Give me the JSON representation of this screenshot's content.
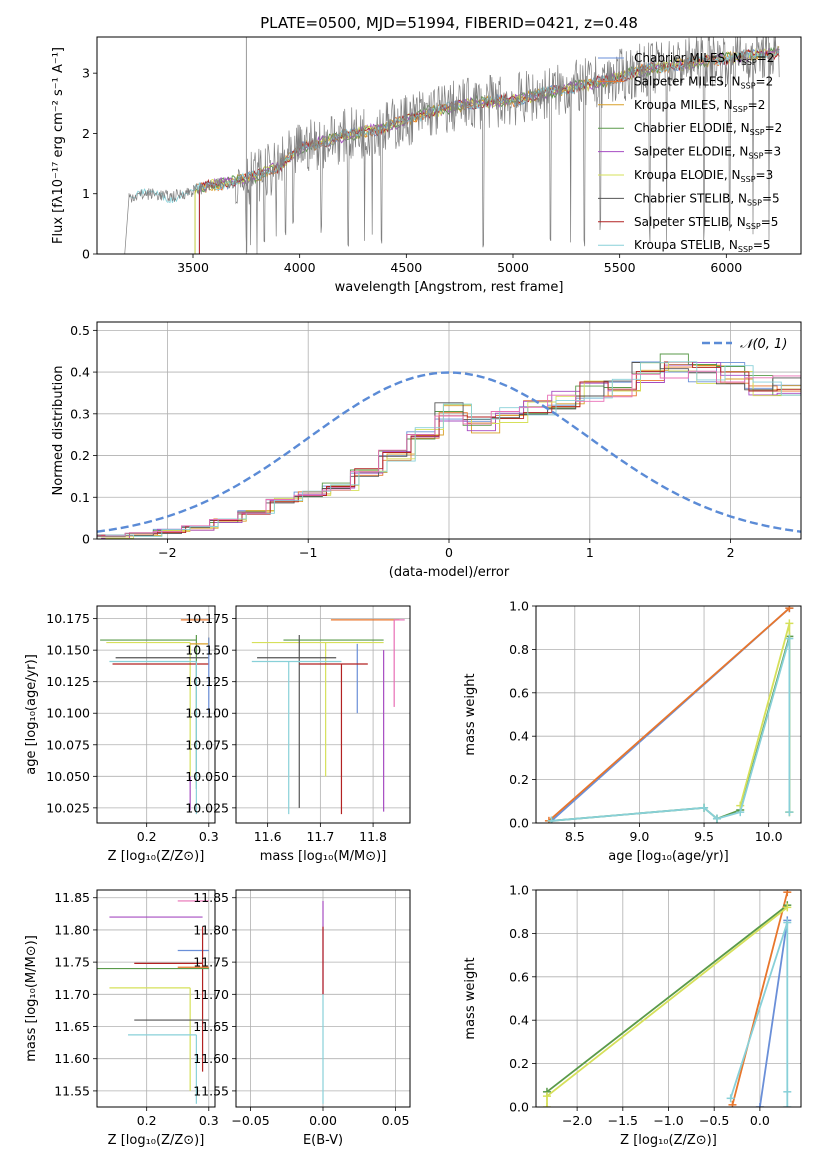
{
  "title": "PLATE=0500, MJD=51994, FIBERID=0421, z=0.48",
  "palette": {
    "chabrier_miles": "#6a8fd8",
    "salpeter_miles": "#e8762c",
    "kroupa_miles": "#d9a02a",
    "chabrier_elodie": "#5a9a4a",
    "salpeter_elodie": "#a64cc2",
    "kroupa_elodie": "#d6e05a",
    "chabrier_stelib": "#555555",
    "salpeter_stelib": "#b22222",
    "kroupa_stelib": "#88d0d8",
    "data": "#808080",
    "pink": "#e86fb5",
    "normal": "#5b8bd6"
  },
  "chart_data": [
    {
      "id": "spectrum",
      "type": "line",
      "xlabel": "wavelength [Angstrom, rest frame]",
      "ylabel": "Flux [fλ10⁻¹⁷ erg cm⁻² s⁻¹ A⁻¹]",
      "xlim": [
        3050,
        6350
      ],
      "ylim": [
        0,
        3.6
      ],
      "xticks": [
        3500,
        4000,
        4500,
        5000,
        5500,
        6000
      ],
      "yticks": [
        0,
        1,
        2,
        3
      ],
      "series_labels": [
        {
          "name": "Chabrier MILES, N",
          "sub": "SSP",
          "tail": "=2",
          "color": "chabrier_miles"
        },
        {
          "name": "Salpeter MILES, N",
          "sub": "SSP",
          "tail": "=2",
          "color": "salpeter_miles"
        },
        {
          "name": "Kroupa MILES, N",
          "sub": "SSP",
          "tail": "=2",
          "color": "kroupa_miles"
        },
        {
          "name": "Chabrier ELODIE, N",
          "sub": "SSP",
          "tail": "=2",
          "color": "chabrier_elodie"
        },
        {
          "name": "Salpeter ELODIE, N",
          "sub": "SSP",
          "tail": "=3",
          "color": "salpeter_elodie"
        },
        {
          "name": "Kroupa ELODIE, N",
          "sub": "SSP",
          "tail": "=3",
          "color": "kroupa_elodie"
        },
        {
          "name": "Chabrier STELIB, N",
          "sub": "SSP",
          "tail": "=5",
          "color": "chabrier_stelib"
        },
        {
          "name": "Salpeter STELIB, N",
          "sub": "SSP",
          "tail": "=5",
          "color": "salpeter_stelib"
        },
        {
          "name": "Kroupa STELIB, N",
          "sub": "SSP",
          "tail": "=5",
          "color": "kroupa_stelib"
        }
      ],
      "continuum": [
        [
          3200,
          0.95
        ],
        [
          3300,
          1.0
        ],
        [
          3400,
          0.95
        ],
        [
          3500,
          1.05
        ],
        [
          3600,
          1.15
        ],
        [
          3700,
          1.2
        ],
        [
          3800,
          1.3
        ],
        [
          3900,
          1.45
        ],
        [
          4000,
          1.75
        ],
        [
          4200,
          1.95
        ],
        [
          4400,
          2.1
        ],
        [
          4600,
          2.35
        ],
        [
          4800,
          2.5
        ],
        [
          5000,
          2.55
        ],
        [
          5200,
          2.7
        ],
        [
          5400,
          2.85
        ],
        [
          5600,
          3.05
        ],
        [
          5800,
          3.15
        ],
        [
          6000,
          3.25
        ],
        [
          6250,
          3.35
        ]
      ],
      "absorption_lines": [
        3750,
        3770,
        3800,
        3835,
        3890,
        3934,
        3969,
        4102,
        4227,
        4304,
        4340,
        4384,
        4861,
        5175,
        5270,
        5335,
        5410,
        5640,
        5720,
        5895,
        6015,
        6125,
        6200
      ]
    },
    {
      "id": "residuals",
      "type": "bar",
      "xlabel": "(data-model)/error",
      "ylabel": "Normed distribution",
      "xlim": [
        -2.5,
        2.5
      ],
      "ylim": [
        0,
        0.52
      ],
      "xticks": [
        -2,
        -1,
        0,
        1,
        2
      ],
      "yticks": [
        0.0,
        0.1,
        0.2,
        0.3,
        0.4,
        0.5
      ],
      "legend": {
        "label": "𝒩(0, 1)",
        "placement": "top-right"
      },
      "bin_width": 0.1,
      "bin_start": -2.5,
      "hist_base": [
        0.005,
        0.007,
        0.01,
        0.012,
        0.016,
        0.02,
        0.024,
        0.03,
        0.04,
        0.05,
        0.06,
        0.07,
        0.085,
        0.1,
        0.11,
        0.105,
        0.12,
        0.13,
        0.15,
        0.17,
        0.19,
        0.21,
        0.23,
        0.27,
        0.3,
        0.31,
        0.28,
        0.27,
        0.3,
        0.3,
        0.32,
        0.32,
        0.34,
        0.33,
        0.35,
        0.36,
        0.35,
        0.37,
        0.38,
        0.42,
        0.43,
        0.4,
        0.41,
        0.38,
        0.42,
        0.38,
        0.36,
        0.37,
        0.35,
        0.38,
        0.37,
        0.39,
        0.37,
        0.35,
        0.36,
        0.31,
        0.3,
        0.29,
        0.27,
        0.26,
        0.24,
        0.23,
        0.22,
        0.2,
        0.2,
        0.19,
        0.15,
        0.16,
        0.14,
        0.14,
        0.12,
        0.13,
        0.1,
        0.11,
        0.09,
        0.09,
        0.07,
        0.07,
        0.06,
        0.06,
        0.06,
        0.05,
        0.05,
        0.05,
        0.04,
        0.04,
        0.04,
        0.04,
        0.03,
        0.03,
        0.03,
        0.03,
        0.03,
        0.03,
        0.03,
        0.03,
        0.03,
        0.03,
        0.03,
        0.03
      ]
    },
    {
      "id": "age_vs_Z",
      "type": "scatter",
      "xlabel": "Z [log₁₀(Z/Z⊙)]",
      "ylabel": "age  [log₁₀(age/yr)]",
      "xlim": [
        0.12,
        0.31
      ],
      "ylim": [
        10.013,
        10.185
      ],
      "xticks": [
        0.2,
        0.3
      ],
      "yticks": [
        10.025,
        10.05,
        10.075,
        10.1,
        10.125,
        10.15,
        10.175
      ],
      "ytick_labels": [
        "10.025",
        "10.050",
        "10.075",
        "10.100",
        "10.125",
        "10.150",
        "10.175"
      ],
      "points": [
        {
          "color": "salpeter_miles",
          "x": 0.3,
          "y": 10.174,
          "xerr": [
            0.255,
            0.3
          ],
          "yerr": [
            10.174,
            10.174
          ]
        },
        {
          "color": "chabrier_elodie",
          "x": 0.28,
          "y": 10.158,
          "xerr": [
            0.125,
            0.28
          ],
          "yerr": [
            10.04,
            10.162
          ]
        },
        {
          "color": "kroupa_elodie",
          "x": 0.27,
          "y": 10.156,
          "xerr": [
            0.135,
            0.27
          ],
          "yerr": [
            10.05,
            10.156
          ]
        },
        {
          "color": "kroupa_miles",
          "x": 0.3,
          "y": 10.155,
          "xerr": [
            0.27,
            0.3
          ],
          "yerr": [
            10.15,
            10.16
          ]
        },
        {
          "color": "chabrier_stelib",
          "x": 0.3,
          "y": 10.144,
          "xerr": [
            0.15,
            0.3
          ],
          "yerr": [
            10.144,
            10.144
          ]
        },
        {
          "color": "salpeter_stelib",
          "x": 0.3,
          "y": 10.139,
          "xerr": [
            0.145,
            0.3
          ],
          "yerr": [
            10.139,
            10.139
          ]
        },
        {
          "color": "kroupa_stelib",
          "x": 0.28,
          "y": 10.141,
          "xerr": [
            0.14,
            0.28
          ],
          "yerr": [
            10.02,
            10.141
          ]
        },
        {
          "color": "salpeter_elodie",
          "x": 0.27,
          "y": 10.05,
          "xerr": [
            0.27,
            0.27
          ],
          "yerr": [
            10.023,
            10.05
          ]
        },
        {
          "color": "chabrier_miles",
          "x": 0.3,
          "y": 10.16,
          "xerr": [
            0.3,
            0.3
          ],
          "yerr": [
            10.1,
            10.16
          ]
        }
      ]
    },
    {
      "id": "age_vs_mass",
      "type": "scatter",
      "xlabel": "mass [log₁₀(M/M⊙)]",
      "ylabel": "",
      "xlim": [
        11.54,
        11.87
      ],
      "ylim": [
        10.013,
        10.185
      ],
      "xticks": [
        11.6,
        11.7,
        11.8
      ],
      "yticks": [
        10.025,
        10.05,
        10.075,
        10.1,
        10.125,
        10.15,
        10.175
      ],
      "ytick_labels": [
        "10.025",
        "10.050",
        "10.075",
        "10.100",
        "10.125",
        "10.150",
        "10.175"
      ],
      "points": [
        {
          "color": "salpeter_miles",
          "x": 11.74,
          "y": 10.174,
          "xerr": [
            11.72,
            11.85
          ],
          "yerr": [
            10.174,
            10.174
          ]
        },
        {
          "color": "pink",
          "x": 11.84,
          "y": 10.174,
          "xerr": [
            11.84,
            11.86
          ],
          "yerr": [
            10.105,
            10.174
          ]
        },
        {
          "color": "chabrier_elodie",
          "x": 11.74,
          "y": 10.158,
          "xerr": [
            11.63,
            11.82
          ],
          "yerr": [
            10.158,
            10.158
          ]
        },
        {
          "color": "kroupa_elodie",
          "x": 11.71,
          "y": 10.156,
          "xerr": [
            11.57,
            11.82
          ],
          "yerr": [
            10.05,
            10.156
          ]
        },
        {
          "color": "salpeter_elodie",
          "x": 11.82,
          "y": 10.15,
          "xerr": [
            11.82,
            11.82
          ],
          "yerr": [
            10.022,
            10.15
          ]
        },
        {
          "color": "chabrier_miles",
          "x": 11.77,
          "y": 10.155,
          "xerr": [
            11.77,
            11.77
          ],
          "yerr": [
            10.1,
            10.155
          ]
        },
        {
          "color": "chabrier_stelib",
          "x": 11.66,
          "y": 10.144,
          "xerr": [
            11.58,
            11.73
          ],
          "yerr": [
            10.025,
            10.162
          ]
        },
        {
          "color": "salpeter_stelib",
          "x": 11.74,
          "y": 10.139,
          "xerr": [
            11.66,
            11.79
          ],
          "yerr": [
            10.02,
            10.139
          ]
        },
        {
          "color": "kroupa_stelib",
          "x": 11.64,
          "y": 10.141,
          "xerr": [
            11.57,
            11.74
          ],
          "yerr": [
            10.02,
            10.141
          ]
        }
      ]
    },
    {
      "id": "weight_vs_age",
      "type": "line",
      "xlabel": "age  [log₁₀(age/yr)]",
      "ylabel": "mass weight",
      "xlim": [
        8.2,
        10.25
      ],
      "ylim": [
        0,
        1
      ],
      "xticks": [
        8.5,
        9.0,
        9.5,
        10.0
      ],
      "xtick_labels": [
        "8.5",
        "9.0",
        "9.5",
        "10.0"
      ],
      "yticks": [
        0,
        0.2,
        0.4,
        0.6,
        0.8,
        1.0
      ],
      "ytick_labels": [
        "0.0",
        "0.2",
        "0.4",
        "0.6",
        "0.8",
        "1.0"
      ],
      "series": [
        {
          "color": "chabrier_miles",
          "x": [
            8.32,
            10.16
          ],
          "y": [
            0.01,
            0.99
          ]
        },
        {
          "color": "salpeter_miles",
          "x": [
            8.3,
            10.16
          ],
          "y": [
            0.01,
            0.99
          ]
        },
        {
          "color": "chabrier_elodie",
          "x": [
            8.32,
            9.5,
            9.6,
            9.78,
            10.16,
            10.16
          ],
          "y": [
            0.01,
            0.07,
            0.02,
            0.06,
            0.86,
            0.05
          ]
        },
        {
          "color": "kroupa_elodie",
          "x": [
            9.78,
            10.16,
            10.16
          ],
          "y": [
            0.08,
            0.92,
            0.05
          ]
        },
        {
          "color": "kroupa_stelib",
          "x": [
            8.32,
            9.5,
            9.6,
            9.78,
            10.16,
            10.16
          ],
          "y": [
            0.01,
            0.07,
            0.02,
            0.05,
            0.85,
            0.05
          ]
        }
      ]
    },
    {
      "id": "mass_vs_Z",
      "type": "scatter",
      "xlabel": "Z [log₁₀(Z/Z⊙)]",
      "ylabel": "mass [log₁₀(M/M⊙)]",
      "xlim": [
        0.12,
        0.31
      ],
      "ylim": [
        11.525,
        11.862
      ],
      "xticks": [
        0.2,
        0.3
      ],
      "yticks": [
        11.55,
        11.6,
        11.65,
        11.7,
        11.75,
        11.8,
        11.85
      ],
      "ytick_labels": [
        "11.55",
        "11.60",
        "11.65",
        "11.70",
        "11.75",
        "11.80",
        "11.85"
      ],
      "points": [
        {
          "color": "pink",
          "x": 0.3,
          "y": 11.845,
          "xerr": [
            0.25,
            0.3
          ],
          "yerr": [
            11.845,
            11.845
          ]
        },
        {
          "color": "salpeter_elodie",
          "x": 0.29,
          "y": 11.82,
          "xerr": [
            0.14,
            0.29
          ],
          "yerr": [
            11.82,
            11.82
          ]
        },
        {
          "color": "chabrier_miles",
          "x": 0.3,
          "y": 11.768,
          "xerr": [
            0.25,
            0.3
          ],
          "yerr": [
            11.768,
            11.768
          ]
        },
        {
          "color": "salpeter_stelib",
          "x": 0.29,
          "y": 11.748,
          "xerr": [
            0.18,
            0.29
          ],
          "yerr": [
            11.58,
            11.805
          ]
        },
        {
          "color": "salpeter_miles",
          "x": 0.3,
          "y": 11.742,
          "xerr": [
            0.25,
            0.3
          ],
          "yerr": [
            11.742,
            11.742
          ]
        },
        {
          "color": "chabrier_elodie",
          "x": 0.3,
          "y": 11.74,
          "xerr": [
            0.12,
            0.3
          ],
          "yerr": [
            11.74,
            11.74
          ]
        },
        {
          "color": "kroupa_elodie",
          "x": 0.27,
          "y": 11.71,
          "xerr": [
            0.14,
            0.27
          ],
          "yerr": [
            11.55,
            11.71
          ]
        },
        {
          "color": "chabrier_stelib",
          "x": 0.3,
          "y": 11.66,
          "xerr": [
            0.18,
            0.3
          ],
          "yerr": [
            11.66,
            11.66
          ]
        },
        {
          "color": "kroupa_stelib",
          "x": 0.28,
          "y": 11.637,
          "xerr": [
            0.17,
            0.28
          ],
          "yerr": [
            11.53,
            11.637
          ]
        }
      ]
    },
    {
      "id": "mass_vs_ebv",
      "type": "scatter",
      "xlabel": "E(B-V)",
      "ylabel": "",
      "xlim": [
        -0.06,
        0.06
      ],
      "ylim": [
        11.525,
        11.862
      ],
      "xticks": [
        -0.05,
        0,
        0.05
      ],
      "xtick_labels": [
        "−0.05",
        "0.00",
        "0.05"
      ],
      "yticks": [
        11.55,
        11.6,
        11.65,
        11.7,
        11.75,
        11.8,
        11.85
      ],
      "ytick_labels": [
        "11.55",
        "11.60",
        "11.65",
        "11.70",
        "11.75",
        "11.80",
        "11.85"
      ],
      "points": [
        {
          "color": "salpeter_elodie",
          "x": 0,
          "y": 11.845,
          "yerr": [
            11.7,
            11.845
          ]
        },
        {
          "color": "salpeter_stelib",
          "x": 0,
          "y": 11.805,
          "yerr": [
            11.7,
            11.805
          ]
        },
        {
          "color": "kroupa_stelib",
          "x": 0,
          "y": 11.7,
          "yerr": [
            11.53,
            11.7
          ]
        }
      ]
    },
    {
      "id": "weight_vs_Z",
      "type": "line",
      "xlabel": "Z [log₁₀(Z/Z⊙)]",
      "ylabel": "mass weight",
      "xlim": [
        -2.45,
        0.45
      ],
      "ylim": [
        0,
        1
      ],
      "xticks": [
        -2.0,
        -1.5,
        -1.0,
        -0.5,
        0.0
      ],
      "xtick_labels": [
        "−2.0",
        "−1.5",
        "−1.0",
        "−0.5",
        "0.0"
      ],
      "yticks": [
        0,
        0.2,
        0.4,
        0.6,
        0.8,
        1.0
      ],
      "ytick_labels": [
        "0.0",
        "0.2",
        "0.4",
        "0.6",
        "0.8",
        "1.0"
      ],
      "series": [
        {
          "color": "chabrier_miles",
          "x": [
            0.0,
            0.3
          ],
          "y": [
            0.0,
            0.86
          ]
        },
        {
          "color": "salpeter_miles",
          "x": [
            -0.3,
            0.3
          ],
          "y": [
            0.01,
            0.99
          ]
        },
        {
          "color": "chabrier_elodie",
          "x": [
            -2.33,
            0.3
          ],
          "y": [
            0.07,
            0.93
          ]
        },
        {
          "color": "kroupa_elodie",
          "x": [
            -2.33,
            -2.33,
            0.3
          ],
          "y": [
            0.0,
            0.05,
            0.92
          ]
        },
        {
          "color": "kroupa_stelib",
          "x": [
            -0.32,
            0.3,
            0.3,
            0.3
          ],
          "y": [
            0.04,
            0.85,
            0.07,
            0.0
          ]
        }
      ]
    }
  ]
}
